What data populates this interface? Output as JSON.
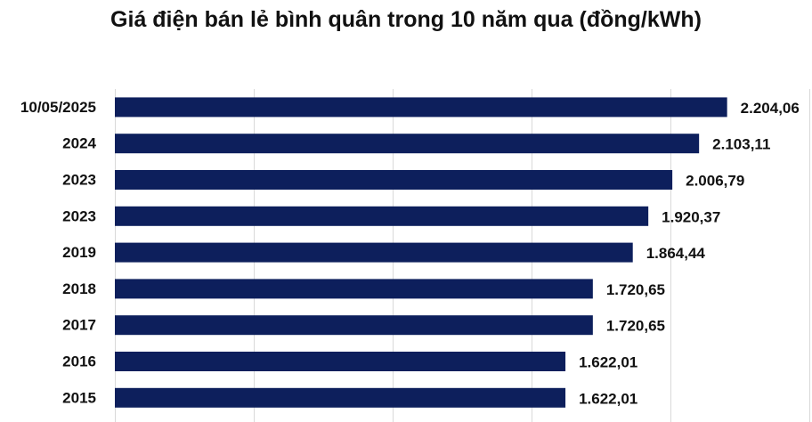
{
  "chart_data": {
    "type": "bar",
    "orientation": "horizontal",
    "title": "Giá điện bán lẻ bình quân trong 10 năm qua (đồng/kWh)",
    "categories": [
      "10/05/2025",
      "2024",
      "2023",
      "2023",
      "2019",
      "2018",
      "2017",
      "2016",
      "2015"
    ],
    "values": [
      2204.06,
      2103.11,
      2006.79,
      1920.37,
      1864.44,
      1720.65,
      1720.65,
      1622.01,
      1622.01
    ],
    "value_labels": [
      "2.204,06",
      "2.103,11",
      "2.006,79",
      "1.920,37",
      "1.864,44",
      "1.720,65",
      "1.720,65",
      "1.622,01",
      "1.622,01"
    ],
    "xlim": [
      0,
      2500
    ],
    "grid": true,
    "legend": "none",
    "bar_color": "#0d1f5c",
    "grid_color": "#d9d9d9"
  }
}
